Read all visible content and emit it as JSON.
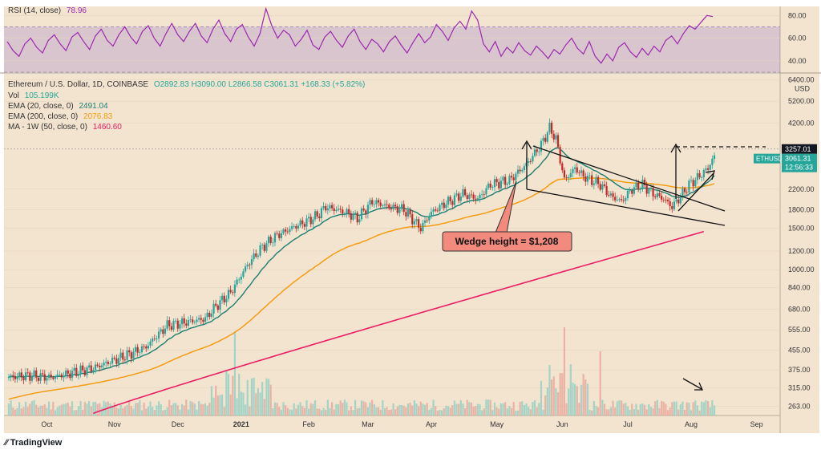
{
  "chart_data": {
    "type": "candlestick",
    "rsi_panel": {
      "label": "RSI (14, close)",
      "value": "78.96",
      "ticks": [
        "80.00",
        "60.00",
        "40.00"
      ],
      "tick_values": [
        80,
        60,
        40
      ],
      "range": [
        30,
        88
      ],
      "band": [
        30,
        70
      ],
      "values": [
        57,
        49,
        44,
        55,
        60,
        52,
        47,
        58,
        63,
        55,
        49,
        61,
        65,
        57,
        50,
        62,
        68,
        58,
        53,
        63,
        70,
        61,
        55,
        66,
        71,
        60,
        53,
        64,
        73,
        63,
        57,
        66,
        73,
        62,
        56,
        68,
        76,
        64,
        57,
        68,
        72,
        61,
        53,
        64,
        86,
        71,
        60,
        67,
        63,
        53,
        59,
        67,
        54,
        50,
        61,
        66,
        58,
        52,
        62,
        68,
        57,
        50,
        59,
        55,
        48,
        57,
        62,
        54,
        47,
        56,
        64,
        56,
        61,
        72,
        66,
        58,
        69,
        75,
        68,
        84,
        76,
        55,
        48,
        57,
        44,
        52,
        47,
        56,
        49,
        45,
        53,
        48,
        42,
        50,
        46,
        54,
        60,
        51,
        46,
        57,
        44,
        38,
        46,
        40,
        52,
        56,
        48,
        43,
        51,
        45,
        53,
        48,
        58,
        62,
        55,
        64,
        71,
        68,
        74,
        80,
        79
      ]
    },
    "main_panel": {
      "symbol_line": "Ethereum / U.S. Dollar, 1D, COINBASE",
      "ohlc": "O2892.83  H3090.00  L2866.58  C3061.31  +168.33 (+5.82%)",
      "ohlc_color": "#26a69a",
      "indicators": [
        {
          "label": "Vol",
          "value": "105.199K",
          "color": "#26a69a"
        },
        {
          "label": "EMA (20, close, 0)",
          "value": "2491.04",
          "color": "#1b7f72"
        },
        {
          "label": "EMA (200, close, 0)",
          "value": "2076.83",
          "color": "#f39c12"
        },
        {
          "label": "MA - 1W (50, close, 0)",
          "value": "1460.60",
          "color": "#e91e63"
        }
      ],
      "yaxis_unit": "USD",
      "yticks": [
        6400,
        5200,
        4200,
        2200,
        1800,
        1500,
        1200,
        1000,
        840,
        680,
        555,
        455,
        375,
        315,
        263
      ],
      "ytick_labels": [
        "6400.00",
        "5200.00",
        "4200.00",
        "2200.00",
        "1800.00",
        "1500.00",
        "1200.00",
        "1000.00",
        "840.00",
        "680.00",
        "555.00",
        "455.00",
        "375.00",
        "315.00",
        "263.00"
      ],
      "scale": "log",
      "price_tag": {
        "value": "3257.01",
        "price": 3257.01
      },
      "current_tag": {
        "symbol": "ETHUSD",
        "value": "3061.31",
        "countdown": "12:56:33",
        "price": 3061.31
      },
      "xticks": [
        "Oct",
        "Nov",
        "Dec",
        "2021",
        "Feb",
        "Mar",
        "Apr",
        "May",
        "Jun",
        "Jul",
        "Aug",
        "Sep"
      ],
      "close_anchors": [
        [
          0,
          350
        ],
        [
          10,
          355
        ],
        [
          20,
          348
        ],
        [
          30,
          365
        ],
        [
          40,
          382
        ],
        [
          55,
          430
        ],
        [
          65,
          470
        ],
        [
          75,
          580
        ],
        [
          85,
          600
        ],
        [
          93,
          620
        ],
        [
          98,
          700
        ],
        [
          105,
          800
        ],
        [
          113,
          1050
        ],
        [
          120,
          1250
        ],
        [
          127,
          1400
        ],
        [
          135,
          1520
        ],
        [
          142,
          1620
        ],
        [
          146,
          1700
        ],
        [
          150,
          1850
        ],
        [
          160,
          1750
        ],
        [
          165,
          1650
        ],
        [
          172,
          1950
        ],
        [
          180,
          1850
        ],
        [
          187,
          1800
        ],
        [
          195,
          1500
        ],
        [
          200,
          1750
        ],
        [
          206,
          1900
        ],
        [
          215,
          2100
        ],
        [
          222,
          2000
        ],
        [
          228,
          2300
        ],
        [
          237,
          2400
        ],
        [
          245,
          2800
        ],
        [
          252,
          3400
        ],
        [
          256,
          4000
        ],
        [
          259,
          3600
        ],
        [
          263,
          2400
        ],
        [
          268,
          2700
        ],
        [
          272,
          2500
        ],
        [
          280,
          2300
        ],
        [
          285,
          2050
        ],
        [
          290,
          1950
        ],
        [
          295,
          2200
        ],
        [
          300,
          2300
        ],
        [
          305,
          2100
        ],
        [
          310,
          2000
        ],
        [
          314,
          1850
        ],
        [
          318,
          2050
        ],
        [
          322,
          2300
        ],
        [
          327,
          2500
        ],
        [
          331,
          2700
        ],
        [
          334,
          3061
        ]
      ],
      "ema20_color": "#1b7f72",
      "ema200_color": "#f39c12",
      "ma50w_color": "#e91e63",
      "annotation": "Wedge height = $1,208"
    }
  },
  "branding": {
    "name": "TradingView"
  }
}
